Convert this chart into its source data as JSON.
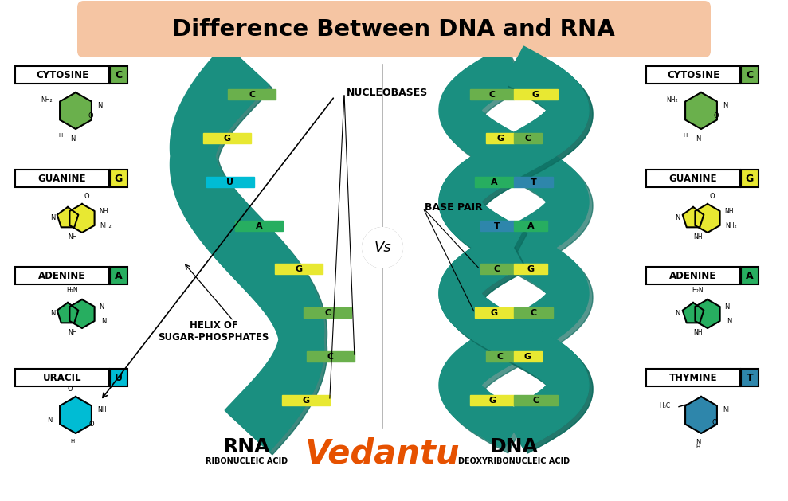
{
  "title": "Difference Between DNA and RNA",
  "title_bg": "#f5c5a3",
  "bg_color": "#ffffff",
  "helix_teal": "#1a8f80",
  "helix_dark": "#0d6b5e",
  "base_colors": {
    "G": "#e8e832",
    "C": "#6ab04c",
    "A": "#27ae60",
    "T": "#2e86ab",
    "U": "#00bcd4"
  },
  "left_labels": [
    "CYTOSINE",
    "GUANINE",
    "ADENINE",
    "URACIL"
  ],
  "left_letters": [
    "C",
    "G",
    "A",
    "U"
  ],
  "left_badge_colors": [
    "#6ab04c",
    "#e8e832",
    "#27ae60",
    "#00bcd4"
  ],
  "left_mol_colors": [
    "#6ab04c",
    "#e8e832",
    "#27ae60",
    "#00bcd4"
  ],
  "right_labels": [
    "CYTOSINE",
    "GUANINE",
    "ADENINE",
    "THYMINE"
  ],
  "right_letters": [
    "C",
    "G",
    "A",
    "T"
  ],
  "right_badge_colors": [
    "#6ab04c",
    "#e8e832",
    "#27ae60",
    "#2e86ab"
  ],
  "right_mol_colors": [
    "#6ab04c",
    "#e8e832",
    "#27ae60",
    "#2e86ab"
  ],
  "rna_label": "RNA",
  "rna_sublabel": "RIBONUCLEIC ACID",
  "dna_label": "DNA",
  "dna_sublabel": "DEOXYRIBONUCLEIC ACID",
  "vs_label": "Vs",
  "nucleobases_label": "NUCLEOBASES",
  "base_pair_label": "BASE PAIR",
  "helix_label": "HELIX OF\nSUGAR-PHOSPHATES",
  "vedantu_color": "#e65100",
  "rna_bases": [
    "G",
    "C",
    "C",
    "G",
    "A",
    "U",
    "G",
    "C"
  ],
  "dna_bases_l": [
    "G",
    "C",
    "G",
    "C",
    "T",
    "A",
    "G",
    "C"
  ],
  "dna_bases_r": [
    "C",
    "G",
    "C",
    "G",
    "A",
    "T",
    "C",
    "G"
  ]
}
